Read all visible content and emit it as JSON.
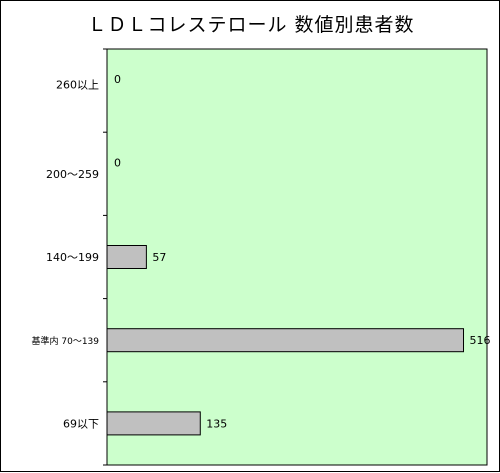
{
  "chart_data": {
    "type": "bar",
    "orientation": "horizontal",
    "title": "ＬＤＬコレステロール 数値別患者数",
    "categories": [
      "260以上",
      "200～259",
      "140～199",
      "基準内 70～139",
      "69以下"
    ],
    "values": [
      0,
      0,
      57,
      516,
      135
    ],
    "xlim": [
      0,
      550
    ],
    "grid": false,
    "colors": {
      "plot_background": "#ccffcc",
      "bar_fill": "#c0c0c0",
      "bar_stroke": "#000000"
    }
  }
}
